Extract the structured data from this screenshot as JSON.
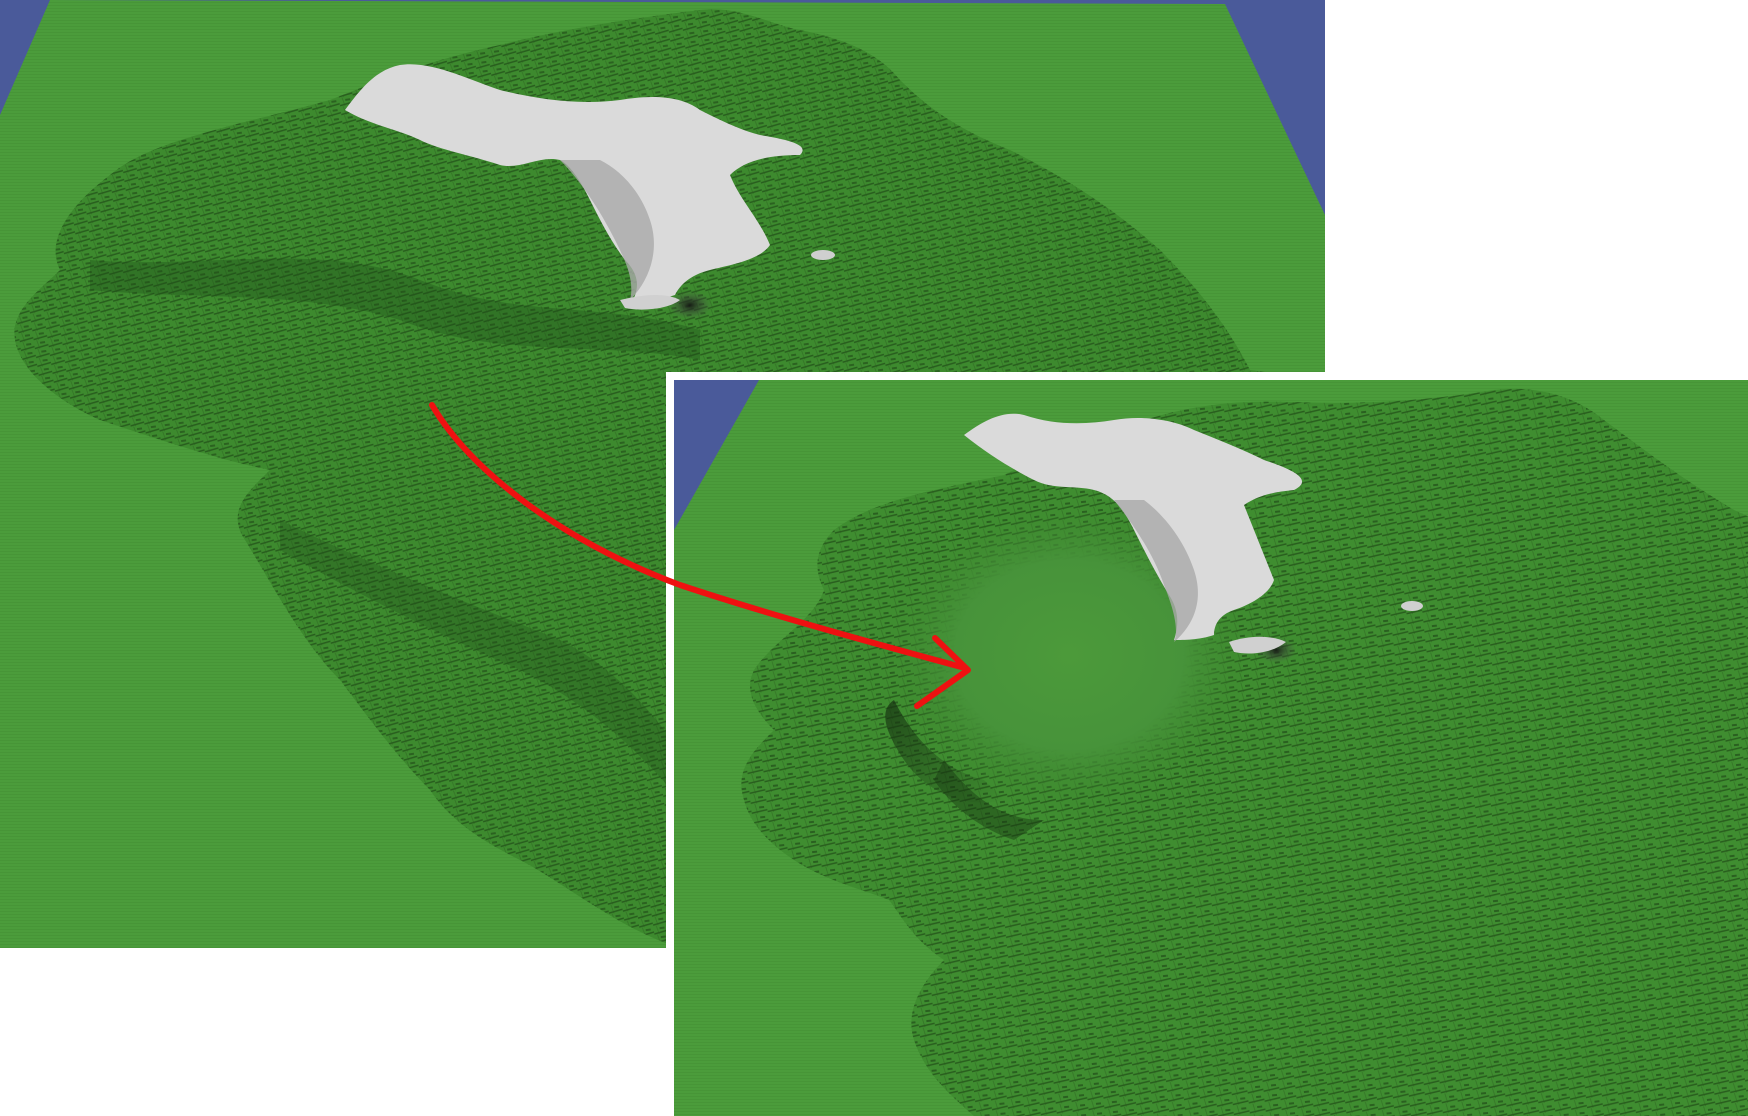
{
  "figure": {
    "panels": [
      {
        "id": "before",
        "content": "terrain"
      },
      {
        "id": "after",
        "content": "terrain-flattened"
      }
    ]
  },
  "colors": {
    "sky": "#4a5a9a",
    "ground": "#4a9a3a",
    "terrain_dark": "#2f6e22",
    "terrain_mid": "#3f8a30",
    "snow": "#d9d9d9",
    "snow_shade": "#a8a8a8",
    "arrow": "#ee1111"
  }
}
